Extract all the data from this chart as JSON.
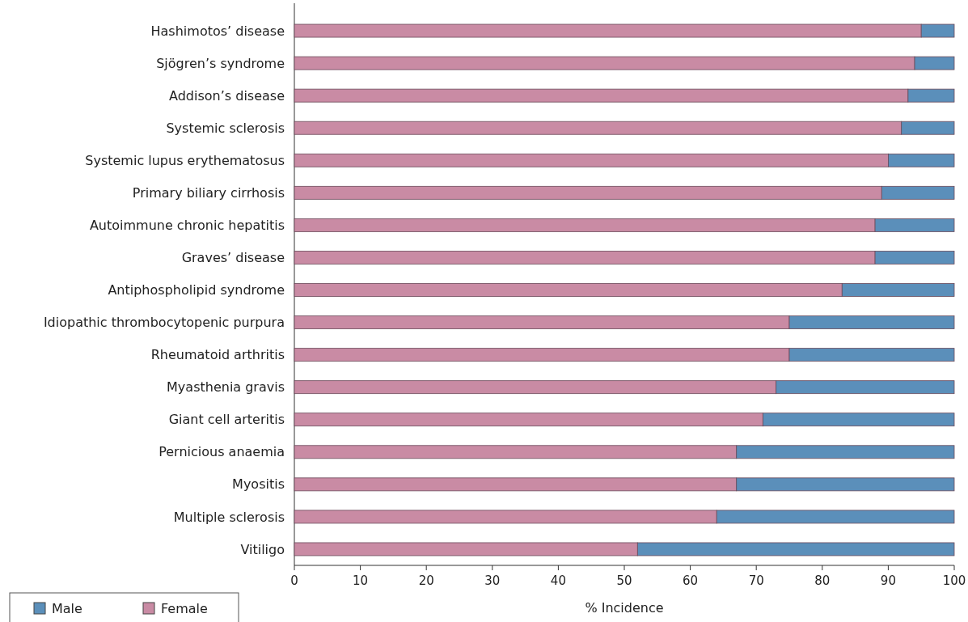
{
  "chart_data": {
    "type": "bar",
    "orientation": "horizontal",
    "stacked": true,
    "xlabel": "% Incidence",
    "categories": [
      "Hashimotos’ disease",
      "Sjögren’s syndrome",
      "Addison’s disease",
      "Systemic sclerosis",
      "Systemic lupus erythematosus",
      "Primary biliary cirrhosis",
      "Autoimmune chronic hepatitis",
      "Graves’ disease",
      "Antiphospholipid syndrome",
      "Idiopathic thrombocytopenic purpura",
      "Rheumatoid arthritis",
      "Myasthenia gravis",
      "Giant cell arteritis",
      "Pernicious anaemia",
      "Myositis",
      "Multiple sclerosis",
      "Vitiligo"
    ],
    "series": [
      {
        "name": "Female",
        "color": "#c98ba4",
        "values": [
          95,
          94,
          93,
          92,
          90,
          89,
          88,
          88,
          83,
          75,
          75,
          73,
          71,
          67,
          67,
          64,
          52
        ]
      },
      {
        "name": "Male",
        "color": "#5b8fba",
        "values": [
          5,
          6,
          7,
          8,
          10,
          11,
          12,
          12,
          17,
          25,
          25,
          27,
          29,
          33,
          33,
          36,
          48
        ]
      }
    ],
    "xlim": [
      0,
      100
    ],
    "xticks": [
      0,
      10,
      20,
      30,
      40,
      50,
      60,
      70,
      80,
      90,
      100
    ],
    "legend": "bottom left"
  }
}
